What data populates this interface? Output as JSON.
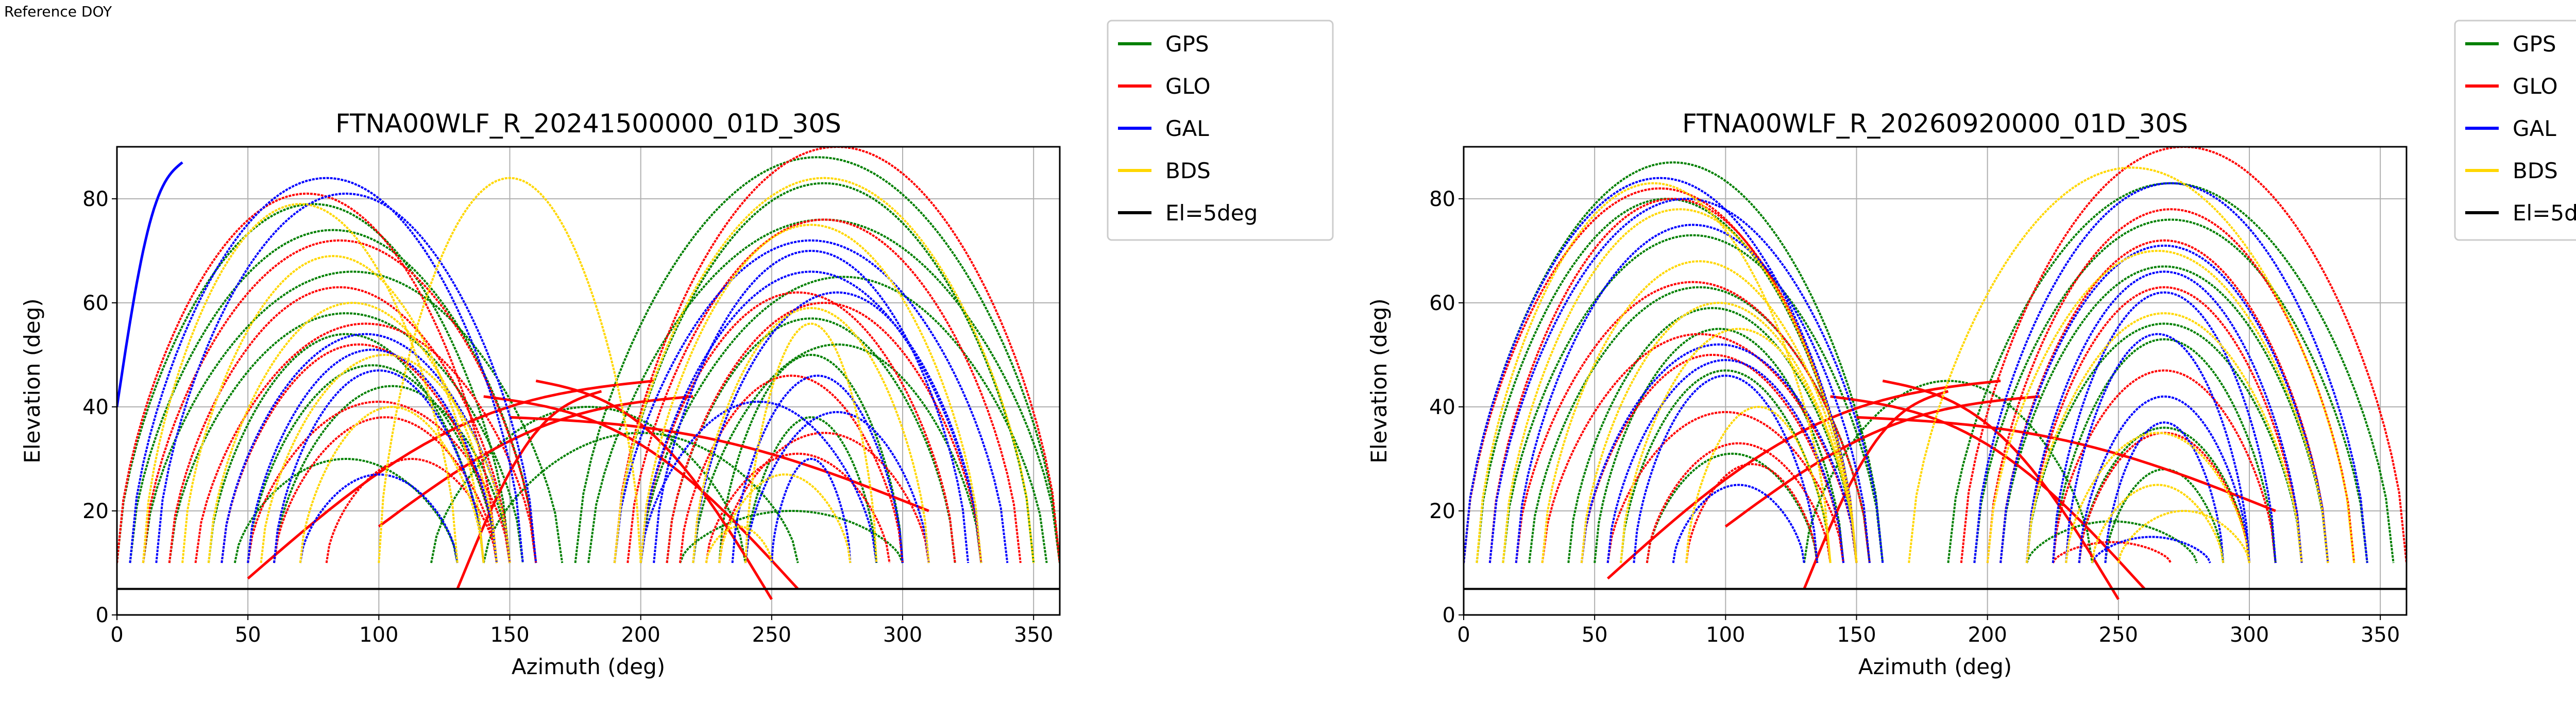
{
  "figure_label": "Reference DOY",
  "colors": {
    "GPS": "#008000",
    "GLO": "#ff0000",
    "GAL": "#0000ff",
    "BDS": "#ffd700",
    "El=5deg": "#000000",
    "grid": "#b0b0b0"
  },
  "chart_data": [
    {
      "type": "line",
      "title": "FTNA00WLF_R_20241500000_01D_30S",
      "xlabel": "Azimuth (deg)",
      "ylabel": "Elevation (deg)",
      "xlim": [
        0,
        360
      ],
      "ylim": [
        0,
        90
      ],
      "xticks": [
        "0",
        "50",
        "100",
        "150",
        "200",
        "250",
        "300",
        "350"
      ],
      "yticks": [
        "0",
        "20",
        "40",
        "60",
        "80"
      ],
      "grid": true,
      "legend_position": "outside-right",
      "legend": [
        "GPS",
        "GLO",
        "GAL",
        "BDS",
        "El=5deg"
      ],
      "reference_line": {
        "name": "El=5deg",
        "elevation": 5
      },
      "tracks": {
        "GPS": [
          [
            0,
            150,
            79
          ],
          [
            5,
            160,
            74
          ],
          [
            10,
            170,
            66
          ],
          [
            20,
            155,
            58
          ],
          [
            35,
            140,
            54
          ],
          [
            50,
            145,
            48
          ],
          [
            60,
            150,
            44
          ],
          [
            45,
            130,
            30
          ],
          [
            180,
            360,
            76
          ],
          [
            190,
            350,
            83
          ],
          [
            200,
            355,
            65
          ],
          [
            210,
            320,
            57
          ],
          [
            220,
            330,
            52
          ],
          [
            230,
            300,
            50
          ],
          [
            240,
            290,
            38
          ],
          [
            215,
            300,
            20
          ],
          [
            175,
            360,
            88
          ],
          [
            120,
            240,
            40
          ],
          [
            140,
            260,
            35
          ]
        ],
        "GLO": [
          [
            0,
            145,
            81
          ],
          [
            10,
            160,
            72
          ],
          [
            20,
            150,
            63
          ],
          [
            30,
            160,
            56
          ],
          [
            40,
            145,
            52
          ],
          [
            50,
            150,
            41
          ],
          [
            60,
            145,
            38
          ],
          [
            80,
            145,
            30
          ],
          [
            195,
            345,
            76
          ],
          [
            200,
            320,
            62
          ],
          [
            210,
            330,
            60
          ],
          [
            215,
            300,
            46
          ],
          [
            230,
            310,
            35
          ],
          [
            225,
            295,
            31
          ],
          [
            190,
            360,
            90
          ]
        ],
        "GAL": [
          [
            5,
            155,
            84
          ],
          [
            15,
            160,
            81
          ],
          [
            40,
            150,
            54
          ],
          [
            50,
            145,
            51
          ],
          [
            60,
            140,
            47
          ],
          [
            70,
            130,
            27
          ],
          [
            190,
            340,
            72
          ],
          [
            200,
            330,
            66
          ],
          [
            205,
            325,
            70
          ],
          [
            220,
            330,
            62
          ],
          [
            235,
            300,
            46
          ],
          [
            240,
            310,
            39
          ],
          [
            250,
            280,
            30
          ],
          [
            200,
            290,
            41
          ]
        ],
        "BDS": [
          [
            10,
            130,
            79
          ],
          [
            25,
            140,
            69
          ],
          [
            35,
            145,
            60
          ],
          [
            55,
            150,
            50
          ],
          [
            70,
            140,
            40
          ],
          [
            100,
            200,
            84
          ],
          [
            190,
            350,
            84
          ],
          [
            200,
            330,
            75
          ],
          [
            220,
            310,
            59
          ],
          [
            240,
            290,
            56
          ],
          [
            230,
            280,
            27
          ],
          [
            225,
            250,
            17
          ]
        ]
      },
      "segments": {
        "GLO": [
          [
            50,
            7,
            205,
            45
          ],
          [
            100,
            17,
            220,
            42
          ],
          [
            140,
            42,
            260,
            5
          ],
          [
            160,
            45,
            250,
            3
          ],
          [
            150,
            38,
            310,
            20
          ],
          [
            130,
            5,
            185,
            43
          ]
        ],
        "GAL": [
          [
            0,
            40,
            25,
            87
          ]
        ]
      }
    },
    {
      "type": "line",
      "title": "FTNA00WLF_R_20260920000_01D_30S",
      "xlabel": "Azimuth (deg)",
      "ylabel": "Elevation (deg)",
      "xlim": [
        0,
        360
      ],
      "ylim": [
        0,
        90
      ],
      "xticks": [
        "0",
        "50",
        "100",
        "150",
        "200",
        "250",
        "300",
        "350"
      ],
      "yticks": [
        "0",
        "20",
        "40",
        "60",
        "80"
      ],
      "grid": true,
      "legend_position": "outside-right",
      "legend": [
        "GPS",
        "GLO",
        "GAL",
        "BDS",
        "El=5deg"
      ],
      "reference_line": {
        "name": "El=5deg",
        "elevation": 5
      },
      "tracks": {
        "GPS": [
          [
            0,
            160,
            87
          ],
          [
            5,
            150,
            80
          ],
          [
            15,
            160,
            73
          ],
          [
            25,
            155,
            63
          ],
          [
            40,
            150,
            59
          ],
          [
            50,
            145,
            55
          ],
          [
            60,
            140,
            47
          ],
          [
            70,
            135,
            31
          ],
          [
            185,
            355,
            83
          ],
          [
            195,
            345,
            76
          ],
          [
            205,
            330,
            67
          ],
          [
            215,
            320,
            56
          ],
          [
            225,
            310,
            53
          ],
          [
            235,
            300,
            36
          ],
          [
            245,
            290,
            28
          ],
          [
            215,
            280,
            18
          ],
          [
            130,
            240,
            45
          ]
        ],
        "GLO": [
          [
            0,
            150,
            82
          ],
          [
            10,
            150,
            80
          ],
          [
            20,
            155,
            64
          ],
          [
            30,
            150,
            54
          ],
          [
            45,
            145,
            50
          ],
          [
            55,
            145,
            39
          ],
          [
            70,
            140,
            33
          ],
          [
            85,
            135,
            29
          ],
          [
            190,
            360,
            90
          ],
          [
            200,
            340,
            78
          ],
          [
            205,
            330,
            72
          ],
          [
            215,
            320,
            63
          ],
          [
            225,
            310,
            47
          ],
          [
            235,
            300,
            35
          ],
          [
            225,
            270,
            14
          ]
        ],
        "GAL": [
          [
            0,
            150,
            84
          ],
          [
            10,
            160,
            80
          ],
          [
            20,
            155,
            75
          ],
          [
            45,
            150,
            52
          ],
          [
            55,
            145,
            49
          ],
          [
            65,
            135,
            46
          ],
          [
            80,
            130,
            25
          ],
          [
            195,
            345,
            83
          ],
          [
            205,
            330,
            71
          ],
          [
            215,
            320,
            66
          ],
          [
            225,
            310,
            62
          ],
          [
            230,
            300,
            54
          ],
          [
            235,
            300,
            42
          ],
          [
            245,
            290,
            37
          ],
          [
            240,
            285,
            15
          ]
        ],
        "BDS": [
          [
            5,
            140,
            83
          ],
          [
            15,
            150,
            78
          ],
          [
            30,
            150,
            68
          ],
          [
            45,
            150,
            60
          ],
          [
            60,
            150,
            55
          ],
          [
            85,
            140,
            40
          ],
          [
            170,
            340,
            86
          ],
          [
            200,
            330,
            70
          ],
          [
            215,
            320,
            58
          ],
          [
            230,
            300,
            35
          ],
          [
            240,
            290,
            25
          ],
          [
            250,
            300,
            20
          ]
        ]
      },
      "segments": {
        "GLO": [
          [
            55,
            7,
            205,
            45
          ],
          [
            100,
            17,
            220,
            42
          ],
          [
            140,
            42,
            260,
            5
          ],
          [
            160,
            45,
            250,
            3
          ],
          [
            150,
            38,
            310,
            20
          ],
          [
            130,
            5,
            185,
            43
          ]
        ]
      }
    }
  ]
}
